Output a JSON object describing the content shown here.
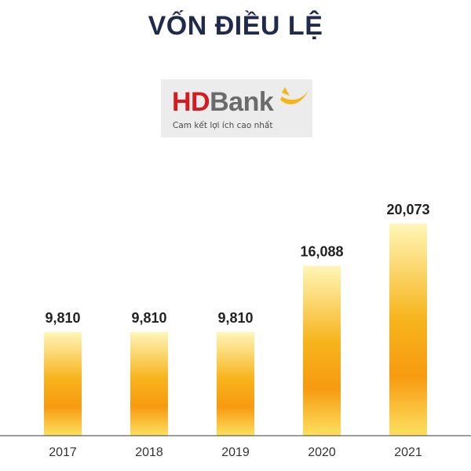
{
  "title": "VỐN ĐIỀU LỆ",
  "logo": {
    "brand_hd": "HD",
    "brand_bank": "Bank",
    "tagline": "Cam kết lợi ích cao nhất"
  },
  "colors": {
    "title": "#1f2b4d",
    "bar_top": "#fff6b8",
    "bar_mid": "#f7b41c",
    "bar_low": "#f79a10",
    "bar_bottom": "#fde060",
    "axis": "#3c3c3c",
    "logo_red": "#d71920",
    "logo_yellow": "#f6b417"
  },
  "chart_data": {
    "type": "bar",
    "title": "VỐN ĐIỀU LỆ",
    "categories": [
      "2017",
      "2018",
      "2019",
      "2020",
      "2021"
    ],
    "values": [
      9810,
      9810,
      9810,
      16088,
      20073
    ],
    "value_labels": [
      "9,810",
      "9,810",
      "9,810",
      "16,088",
      "20,073"
    ],
    "xlabel": "",
    "ylabel": "",
    "ylim": [
      0,
      20073
    ],
    "grid": false,
    "legend": "none"
  }
}
